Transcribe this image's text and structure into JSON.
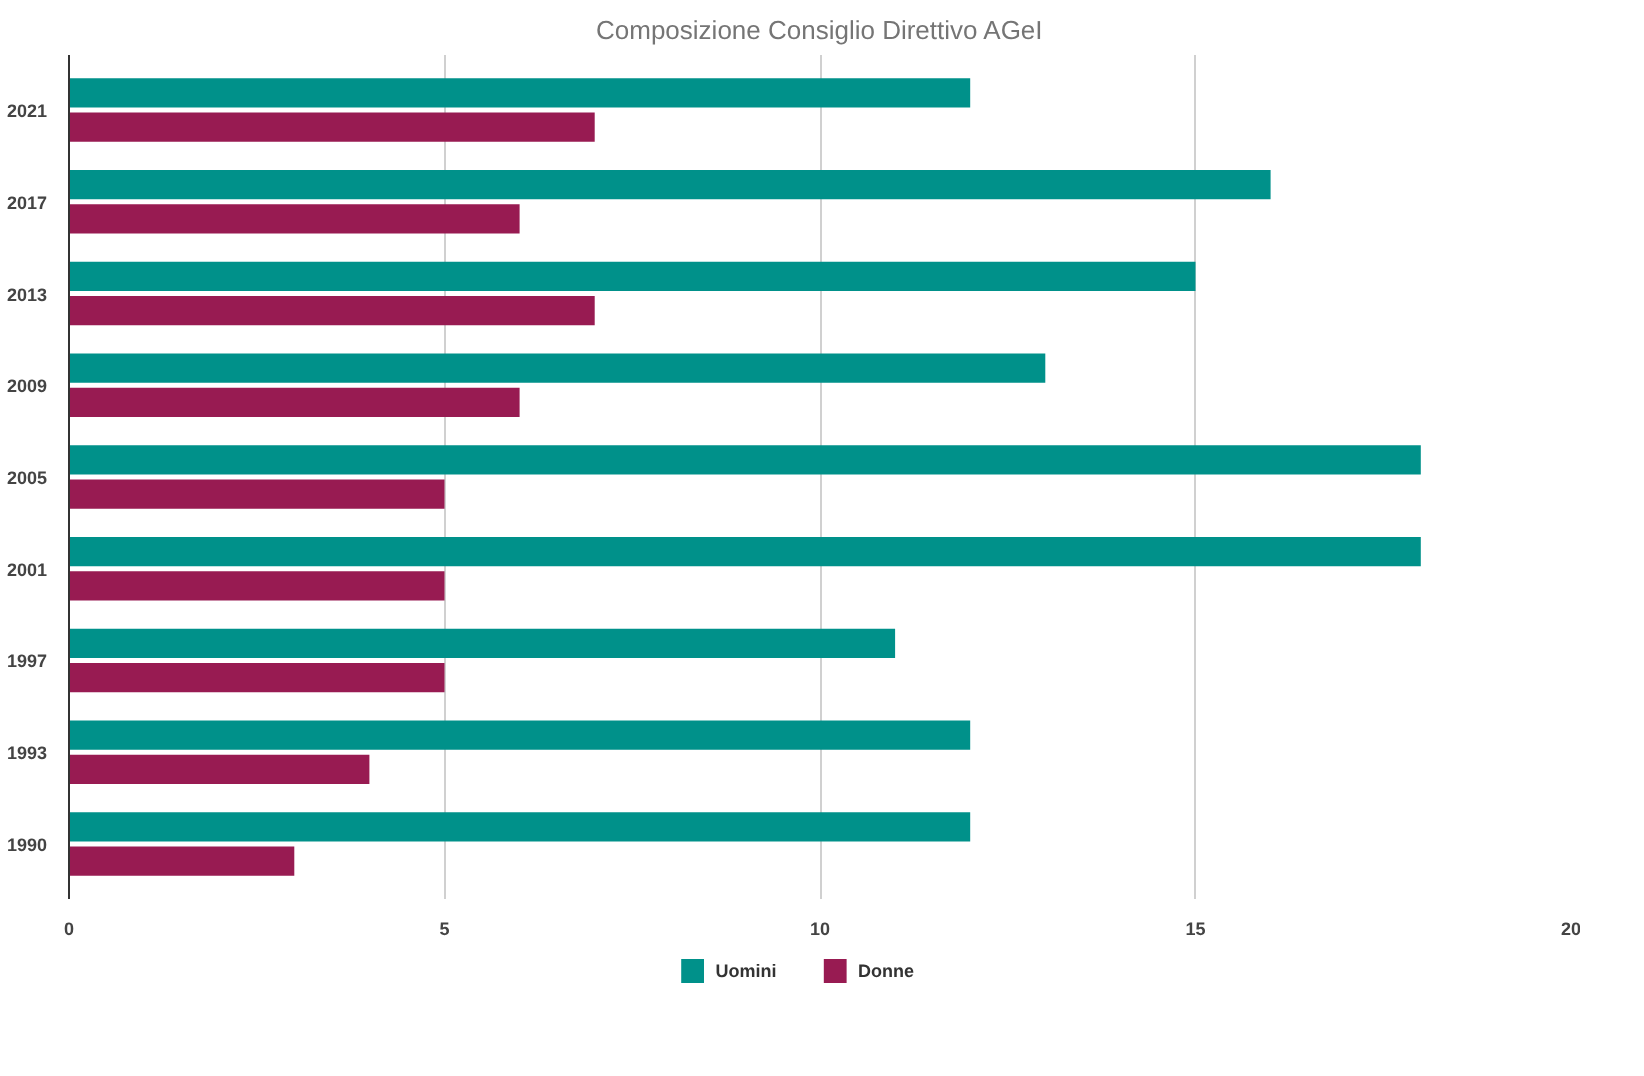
{
  "chart_data": {
    "type": "bar",
    "orientation": "horizontal",
    "title": "Composizione Consiglio Direttivo AGeI",
    "categories": [
      "2021",
      "2017",
      "2013",
      "2009",
      "2005",
      "2001",
      "1997",
      "1993",
      "1990"
    ],
    "series": [
      {
        "name": "Uomini",
        "color": "#00918a",
        "values": [
          12,
          16,
          15,
          13,
          18,
          18,
          11,
          12,
          12
        ]
      },
      {
        "name": "Donne",
        "color": "#981b52",
        "values": [
          7,
          6,
          7,
          6,
          5,
          5,
          5,
          4,
          3
        ]
      }
    ],
    "xlim": [
      0,
      20
    ],
    "xticks": [
      0,
      5,
      10,
      15,
      20
    ],
    "grid": "x",
    "legend": "bottom"
  }
}
